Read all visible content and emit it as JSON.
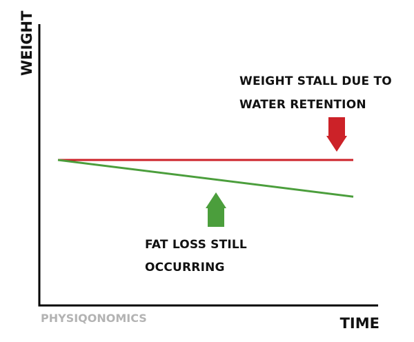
{
  "chart_data": {
    "type": "line",
    "xlabel": "TIME",
    "ylabel": "WEIGHT",
    "grid": false,
    "legend": "none",
    "series": [
      {
        "color": "#cc2228",
        "x": [
          0,
          1
        ],
        "y": [
          1.0,
          1.0
        ]
      },
      {
        "color": "#4b9e3c",
        "x": [
          0,
          1
        ],
        "y": [
          1.0,
          0.81
        ]
      }
    ],
    "annotations": [
      {
        "lines": [
          "WEIGHT STALL DUE TO",
          "WATER RETENTION"
        ],
        "arrow": "down",
        "color": "#cc2228"
      },
      {
        "lines": [
          "FAT LOSS STILL",
          "OCCURRING"
        ],
        "arrow": "up",
        "color": "#4b9e3c"
      }
    ],
    "watermark": "PHYSIQONOMICS"
  }
}
